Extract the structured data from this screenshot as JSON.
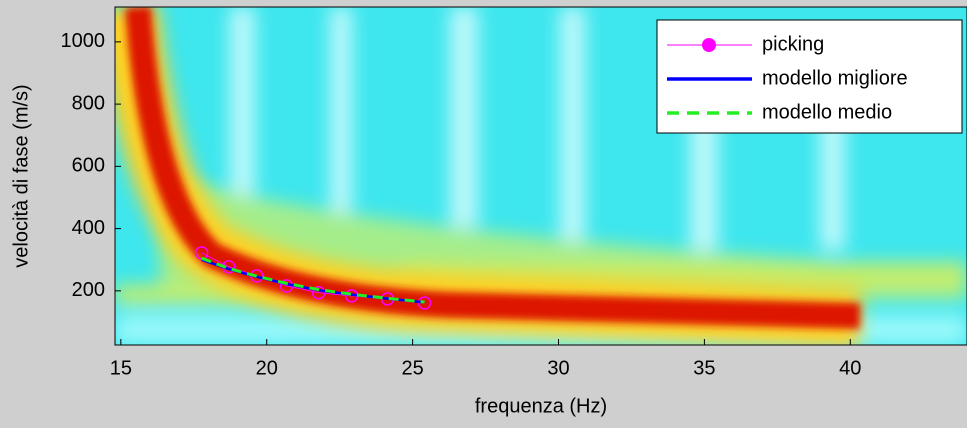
{
  "chart_data": {
    "type": "line",
    "x_label": "frequenza (Hz)",
    "y_label": "velocità di fase (m/s)",
    "xlim": [
      14.8,
      44
    ],
    "xticks": [
      15,
      20,
      25,
      30,
      35,
      40
    ],
    "ylim": [
      26,
      1112
    ],
    "yticks": [
      200,
      400,
      600,
      800,
      1000
    ],
    "legend": "northeast",
    "series": [
      {
        "name": "picking",
        "color": "#ff00ff",
        "style": "markers-line",
        "x": [
          17.77,
          18.7,
          19.66,
          20.68,
          21.78,
          22.91,
          24.14,
          25.41
        ],
        "values": [
          322,
          277,
          248,
          216,
          194,
          184,
          174,
          161
        ]
      },
      {
        "name": "modello migliore",
        "color": "#0000ff",
        "style": "solid",
        "x": [
          17.77,
          18.7,
          19.66,
          20.68,
          21.78,
          22.91,
          24.14,
          25.41
        ],
        "values": [
          300,
          270,
          245,
          222,
          202,
          188,
          175,
          163
        ]
      },
      {
        "name": "modello medio",
        "color": "#22ee22",
        "style": "dashed",
        "x": [
          17.77,
          18.7,
          19.66,
          20.68,
          21.78,
          22.91,
          24.14,
          25.41
        ],
        "values": [
          305,
          272,
          247,
          224,
          204,
          189,
          176,
          164
        ]
      }
    ]
  }
}
